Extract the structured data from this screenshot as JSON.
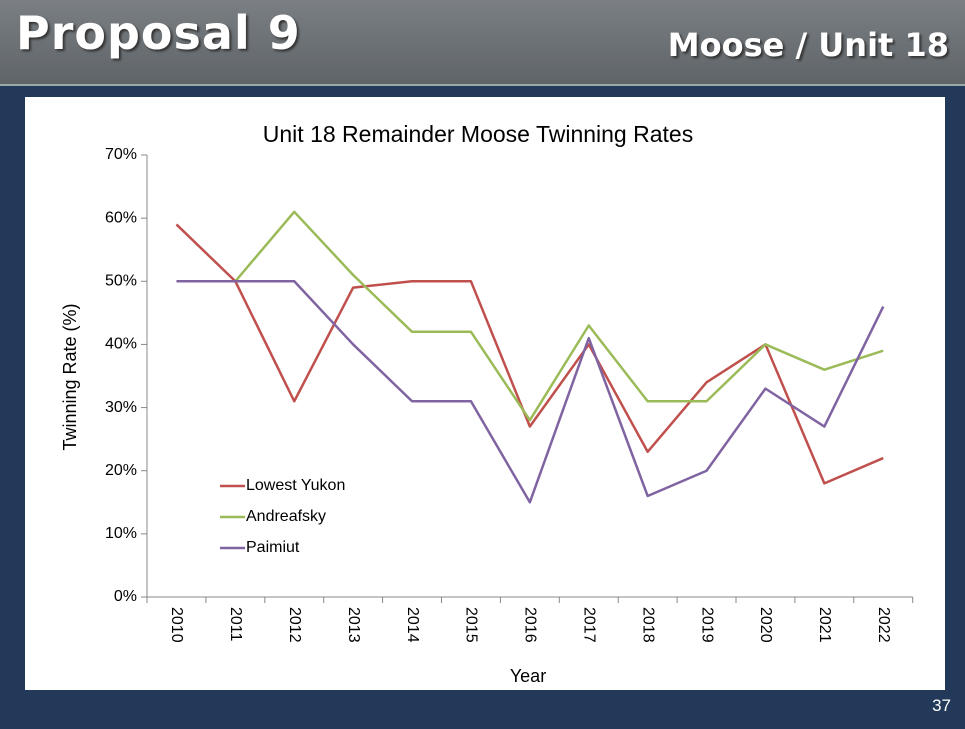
{
  "header": {
    "title": "Proposal 9",
    "subtitle": "Moose / Unit 18"
  },
  "page_number": "37",
  "chart_data": {
    "type": "line",
    "title": "Unit 18 Remainder Moose Twinning Rates",
    "x_label": "Year",
    "y_label": "Twinning Rate (%)",
    "categories": [
      "2010",
      "2011",
      "2012",
      "2013",
      "2014",
      "2015",
      "2016",
      "2017",
      "2018",
      "2019",
      "2020",
      "2021",
      "2022"
    ],
    "series": [
      {
        "name": "Lowest Yukon",
        "color": "#c0504d",
        "values": [
          59,
          50,
          31,
          49,
          50,
          50,
          27,
          40,
          23,
          34,
          40,
          18,
          22
        ]
      },
      {
        "name": "Andreafsky",
        "color": "#9bbb59",
        "values": [
          null,
          50,
          61,
          51,
          42,
          42,
          28,
          43,
          31,
          31,
          40,
          36,
          39
        ]
      },
      {
        "name": "Paimiut",
        "color": "#8064a2",
        "values": [
          50,
          50,
          50,
          40,
          31,
          31,
          15,
          41,
          16,
          20,
          33,
          27,
          46
        ]
      }
    ],
    "ylim": [
      0,
      70
    ],
    "yticks": [
      {
        "value": 0,
        "label": "0%"
      },
      {
        "value": 10,
        "label": "10%"
      },
      {
        "value": 20,
        "label": "20%"
      },
      {
        "value": 30,
        "label": "30%"
      },
      {
        "value": 40,
        "label": "40%"
      },
      {
        "value": 50,
        "label": "50%"
      },
      {
        "value": 60,
        "label": "60%"
      },
      {
        "value": 70,
        "label": "70%"
      }
    ],
    "grid": false,
    "legend": "lower left"
  }
}
